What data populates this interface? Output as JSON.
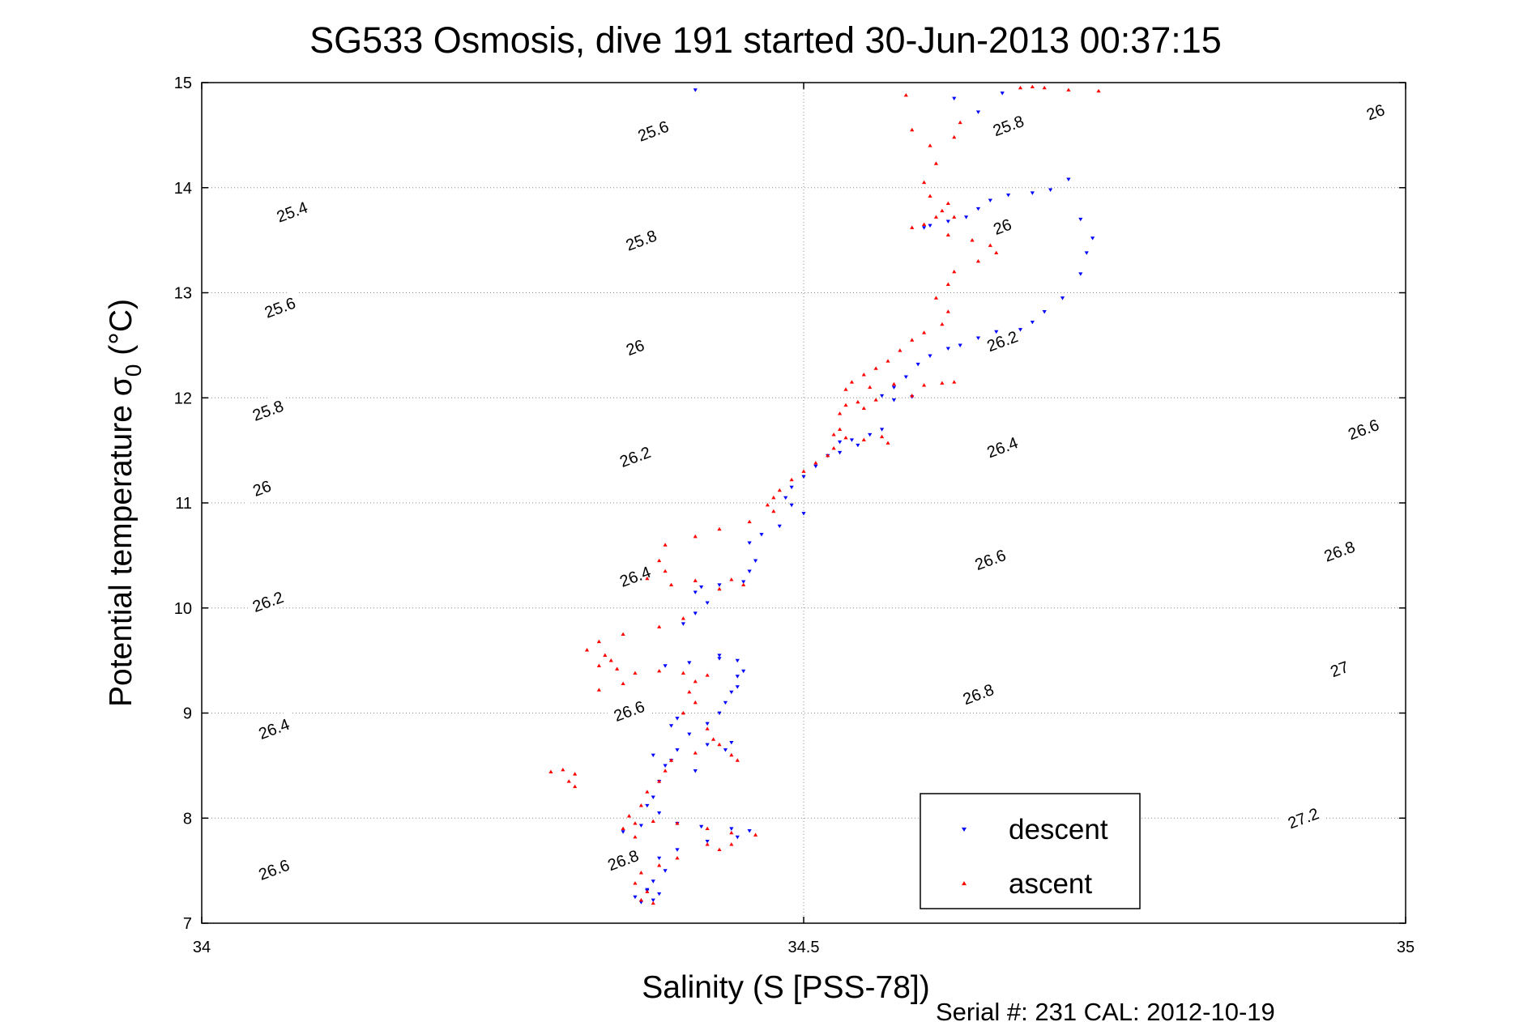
{
  "chart_data": {
    "type": "scatter",
    "title": "SG533 Osmosis, dive 191 started 30-Jun-2013 00:37:15",
    "xlabel": "Salinity (S [PSS-78])",
    "ylabel_main": "Potential temperature σ",
    "ylabel_sub": "0",
    "ylabel_unit": "(°C)",
    "footer": "Serial #: 231  CAL: 2012-10-19",
    "xlim": [
      34,
      35
    ],
    "ylim": [
      7,
      15
    ],
    "xticks": [
      "34",
      "34.5",
      "35"
    ],
    "yticks": [
      "7",
      "8",
      "9",
      "10",
      "11",
      "12",
      "13",
      "14",
      "15"
    ],
    "grid": "dotted",
    "legend_position": "bottom-right",
    "legend": [
      {
        "label": "descent",
        "marker": "triangle-down",
        "color": "#0000ff"
      },
      {
        "label": "ascent",
        "marker": "triangle-up",
        "color": "#ff0000"
      }
    ],
    "contours": {
      "type": "density sigma-0 isopycnals",
      "levels": [
        25.4,
        25.6,
        25.8,
        26,
        26.2,
        26.4,
        26.6,
        26.8,
        27,
        27.2
      ],
      "labels": [
        {
          "text": "25.4",
          "s": 34.075,
          "t": 13.77
        },
        {
          "text": "25.6",
          "s": 34.375,
          "t": 14.54
        },
        {
          "text": "25.8",
          "s": 34.67,
          "t": 14.59
        },
        {
          "text": "26",
          "s": 34.975,
          "t": 14.72
        },
        {
          "text": "25.6",
          "s": 34.065,
          "t": 12.86
        },
        {
          "text": "25.8",
          "s": 34.365,
          "t": 13.5
        },
        {
          "text": "26",
          "s": 34.665,
          "t": 13.63
        },
        {
          "text": "25.8",
          "s": 34.055,
          "t": 11.88
        },
        {
          "text": "26",
          "s": 34.36,
          "t": 12.48
        },
        {
          "text": "26.2",
          "s": 34.665,
          "t": 12.54
        },
        {
          "text": "26",
          "s": 34.05,
          "t": 11.14
        },
        {
          "text": "26.2",
          "s": 34.36,
          "t": 11.44
        },
        {
          "text": "26.4",
          "s": 34.665,
          "t": 11.53
        },
        {
          "text": "26.6",
          "s": 34.965,
          "t": 11.7
        },
        {
          "text": "26.2",
          "s": 34.055,
          "t": 10.06
        },
        {
          "text": "26.4",
          "s": 34.36,
          "t": 10.3
        },
        {
          "text": "26.6",
          "s": 34.655,
          "t": 10.46
        },
        {
          "text": "26.8",
          "s": 34.945,
          "t": 10.54
        },
        {
          "text": "26.4",
          "s": 34.06,
          "t": 8.85
        },
        {
          "text": "26.6",
          "s": 34.355,
          "t": 9.02
        },
        {
          "text": "26.8",
          "s": 34.645,
          "t": 9.18
        },
        {
          "text": "27",
          "s": 34.945,
          "t": 9.42
        },
        {
          "text": "26.6",
          "s": 34.06,
          "t": 7.51
        },
        {
          "text": "26.8",
          "s": 34.35,
          "t": 7.6
        },
        {
          "text": "27.2",
          "s": 34.915,
          "t": 8.0
        }
      ]
    },
    "series": [
      {
        "name": "descent",
        "color": "#0000ff",
        "marker": "triangle-down",
        "points": [
          [
            34.41,
            14.93
          ],
          [
            34.625,
            14.85
          ],
          [
            34.645,
            14.72
          ],
          [
            34.665,
            14.9
          ],
          [
            34.72,
            14.08
          ],
          [
            34.705,
            13.98
          ],
          [
            34.69,
            13.95
          ],
          [
            34.67,
            13.93
          ],
          [
            34.655,
            13.88
          ],
          [
            34.645,
            13.8
          ],
          [
            34.635,
            13.72
          ],
          [
            34.62,
            13.68
          ],
          [
            34.605,
            13.64
          ],
          [
            34.6,
            13.62
          ],
          [
            34.73,
            13.7
          ],
          [
            34.74,
            13.52
          ],
          [
            34.735,
            13.38
          ],
          [
            34.73,
            13.18
          ],
          [
            34.715,
            12.95
          ],
          [
            34.7,
            12.82
          ],
          [
            34.69,
            12.72
          ],
          [
            34.68,
            12.65
          ],
          [
            34.66,
            12.63
          ],
          [
            34.645,
            12.57
          ],
          [
            34.63,
            12.5
          ],
          [
            34.62,
            12.47
          ],
          [
            34.605,
            12.4
          ],
          [
            34.595,
            12.32
          ],
          [
            34.585,
            12.2
          ],
          [
            34.575,
            12.1
          ],
          [
            34.565,
            12.02
          ],
          [
            34.575,
            11.98
          ],
          [
            34.59,
            12.01
          ],
          [
            34.565,
            11.7
          ],
          [
            34.555,
            11.65
          ],
          [
            34.54,
            11.6
          ],
          [
            34.53,
            11.58
          ],
          [
            34.545,
            11.55
          ],
          [
            34.53,
            11.48
          ],
          [
            34.52,
            11.45
          ],
          [
            34.51,
            11.35
          ],
          [
            34.5,
            11.25
          ],
          [
            34.49,
            11.15
          ],
          [
            34.485,
            11.05
          ],
          [
            34.49,
            10.98
          ],
          [
            34.5,
            10.9
          ],
          [
            34.48,
            10.78
          ],
          [
            34.465,
            10.7
          ],
          [
            34.455,
            10.62
          ],
          [
            34.46,
            10.45
          ],
          [
            34.455,
            10.35
          ],
          [
            34.45,
            10.25
          ],
          [
            34.43,
            10.22
          ],
          [
            34.415,
            10.2
          ],
          [
            34.41,
            10.15
          ],
          [
            34.42,
            10.05
          ],
          [
            34.41,
            9.95
          ],
          [
            34.4,
            9.85
          ],
          [
            34.43,
            9.55
          ],
          [
            34.445,
            9.5
          ],
          [
            34.45,
            9.4
          ],
          [
            34.445,
            9.25
          ],
          [
            34.435,
            9.1
          ],
          [
            34.43,
            9.0
          ],
          [
            34.42,
            8.9
          ],
          [
            34.405,
            8.8
          ],
          [
            34.395,
            8.65
          ],
          [
            34.385,
            8.5
          ],
          [
            34.38,
            8.35
          ],
          [
            34.375,
            8.2
          ],
          [
            34.37,
            8.12
          ],
          [
            34.38,
            8.05
          ],
          [
            34.395,
            7.95
          ],
          [
            34.415,
            7.92
          ],
          [
            34.44,
            7.9
          ],
          [
            34.455,
            7.88
          ],
          [
            34.445,
            7.82
          ],
          [
            34.42,
            7.78
          ],
          [
            34.395,
            7.7
          ],
          [
            34.38,
            7.62
          ],
          [
            34.385,
            7.5
          ],
          [
            34.375,
            7.4
          ],
          [
            34.37,
            7.32
          ],
          [
            34.38,
            7.28
          ],
          [
            34.375,
            7.22
          ],
          [
            34.365,
            7.2
          ],
          [
            34.36,
            7.25
          ],
          [
            34.37,
            7.31
          ],
          [
            34.35,
            7.87
          ],
          [
            34.365,
            7.93
          ],
          [
            34.42,
            8.7
          ],
          [
            34.435,
            8.65
          ],
          [
            34.44,
            8.72
          ],
          [
            34.385,
            9.45
          ],
          [
            34.405,
            9.48
          ],
          [
            34.43,
            9.52
          ],
          [
            34.445,
            9.35
          ],
          [
            34.44,
            9.2
          ],
          [
            34.395,
            8.95
          ],
          [
            34.39,
            8.88
          ],
          [
            34.375,
            8.6
          ],
          [
            34.39,
            8.55
          ],
          [
            34.41,
            8.45
          ]
        ]
      },
      {
        "name": "ascent",
        "color": "#ff0000",
        "marker": "triangle-up",
        "points": [
          [
            34.585,
            14.88
          ],
          [
            34.59,
            14.55
          ],
          [
            34.605,
            14.4
          ],
          [
            34.61,
            14.23
          ],
          [
            34.6,
            14.05
          ],
          [
            34.605,
            13.92
          ],
          [
            34.62,
            13.85
          ],
          [
            34.61,
            13.72
          ],
          [
            34.6,
            13.65
          ],
          [
            34.59,
            13.62
          ],
          [
            34.615,
            13.78
          ],
          [
            34.625,
            13.72
          ],
          [
            34.68,
            14.95
          ],
          [
            34.69,
            14.96
          ],
          [
            34.7,
            14.95
          ],
          [
            34.72,
            14.93
          ],
          [
            34.745,
            14.92
          ],
          [
            34.63,
            14.62
          ],
          [
            34.625,
            14.48
          ],
          [
            34.62,
            13.55
          ],
          [
            34.64,
            13.5
          ],
          [
            34.655,
            13.45
          ],
          [
            34.66,
            13.38
          ],
          [
            34.645,
            13.3
          ],
          [
            34.625,
            13.2
          ],
          [
            34.62,
            13.08
          ],
          [
            34.61,
            12.95
          ],
          [
            34.62,
            12.82
          ],
          [
            34.615,
            12.7
          ],
          [
            34.6,
            12.62
          ],
          [
            34.59,
            12.55
          ],
          [
            34.58,
            12.45
          ],
          [
            34.57,
            12.35
          ],
          [
            34.56,
            12.28
          ],
          [
            34.55,
            12.22
          ],
          [
            34.54,
            12.15
          ],
          [
            34.535,
            12.08
          ],
          [
            34.555,
            12.1
          ],
          [
            34.575,
            12.13
          ],
          [
            34.6,
            12.12
          ],
          [
            34.615,
            12.14
          ],
          [
            34.625,
            12.15
          ],
          [
            34.59,
            12.02
          ],
          [
            34.56,
            11.98
          ],
          [
            34.545,
            11.96
          ],
          [
            34.535,
            11.93
          ],
          [
            34.55,
            11.9
          ],
          [
            34.53,
            11.85
          ],
          [
            34.53,
            11.7
          ],
          [
            34.525,
            11.65
          ],
          [
            34.535,
            11.62
          ],
          [
            34.55,
            11.6
          ],
          [
            34.565,
            11.63
          ],
          [
            34.57,
            11.57
          ],
          [
            34.525,
            11.52
          ],
          [
            34.52,
            11.45
          ],
          [
            34.51,
            11.38
          ],
          [
            34.5,
            11.3
          ],
          [
            34.49,
            11.22
          ],
          [
            34.48,
            11.12
          ],
          [
            34.475,
            11.05
          ],
          [
            34.47,
            10.98
          ],
          [
            34.475,
            10.92
          ],
          [
            34.455,
            10.82
          ],
          [
            34.43,
            10.75
          ],
          [
            34.41,
            10.68
          ],
          [
            34.385,
            10.6
          ],
          [
            34.38,
            10.45
          ],
          [
            34.385,
            10.35
          ],
          [
            34.37,
            10.28
          ],
          [
            34.39,
            10.22
          ],
          [
            34.41,
            10.26
          ],
          [
            34.44,
            10.27
          ],
          [
            34.45,
            10.22
          ],
          [
            34.43,
            10.18
          ],
          [
            34.4,
            9.9
          ],
          [
            34.38,
            9.82
          ],
          [
            34.35,
            9.75
          ],
          [
            34.33,
            9.68
          ],
          [
            34.32,
            9.6
          ],
          [
            34.34,
            9.5
          ],
          [
            34.33,
            9.45
          ],
          [
            34.345,
            9.42
          ],
          [
            34.36,
            9.38
          ],
          [
            34.38,
            9.4
          ],
          [
            34.4,
            9.38
          ],
          [
            34.42,
            9.36
          ],
          [
            34.41,
            9.3
          ],
          [
            34.405,
            9.2
          ],
          [
            34.41,
            9.1
          ],
          [
            34.4,
            9.0
          ],
          [
            34.42,
            8.85
          ],
          [
            34.425,
            8.75
          ],
          [
            34.43,
            8.7
          ],
          [
            34.41,
            8.62
          ],
          [
            34.39,
            8.55
          ],
          [
            34.385,
            8.45
          ],
          [
            34.38,
            8.35
          ],
          [
            34.37,
            8.25
          ],
          [
            34.365,
            8.12
          ],
          [
            34.355,
            8.02
          ],
          [
            34.36,
            7.95
          ],
          [
            34.375,
            7.97
          ],
          [
            34.395,
            7.95
          ],
          [
            34.42,
            7.9
          ],
          [
            34.44,
            7.86
          ],
          [
            34.46,
            7.84
          ],
          [
            34.42,
            7.75
          ],
          [
            34.395,
            7.62
          ],
          [
            34.38,
            7.55
          ],
          [
            34.365,
            7.48
          ],
          [
            34.36,
            7.38
          ],
          [
            34.37,
            7.3
          ],
          [
            34.365,
            7.22
          ],
          [
            34.375,
            7.19
          ],
          [
            34.36,
            7.82
          ],
          [
            34.35,
            7.9
          ],
          [
            34.31,
            8.42
          ],
          [
            34.3,
            8.46
          ],
          [
            34.29,
            8.44
          ],
          [
            34.305,
            8.35
          ],
          [
            34.31,
            8.3
          ],
          [
            34.33,
            9.22
          ],
          [
            34.35,
            9.28
          ],
          [
            34.335,
            9.55
          ],
          [
            34.44,
            8.6
          ],
          [
            34.445,
            8.55
          ],
          [
            34.44,
            7.75
          ],
          [
            34.43,
            7.7
          ]
        ]
      }
    ]
  }
}
